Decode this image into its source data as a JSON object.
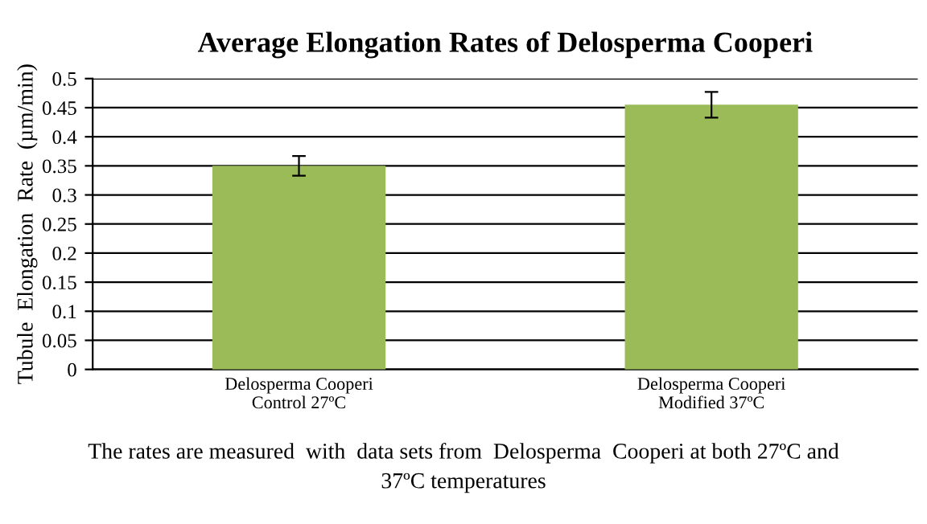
{
  "chart_data": {
    "type": "bar",
    "title": "Average Elongation Rates of Delosperma Cooperi",
    "ylabel": "Tubule  Elongation  Rate  (µm/min)",
    "categories": [
      "Delosperma Cooperi\nControl 27ºC",
      "Delosperma Cooperi\nModified 37ºC"
    ],
    "values": [
      0.35,
      0.455
    ],
    "errors": [
      0.017,
      0.022
    ],
    "color": "#9bbb59",
    "ylim": [
      0,
      0.5
    ],
    "yticks": [
      {
        "value": 0,
        "label": "0"
      },
      0.05,
      0.1,
      0.15,
      0.2,
      0.25,
      0.3,
      0.35,
      0.4,
      0.45,
      0.5
    ],
    "grid": "y",
    "annotations": [
      "The rates are measured  with  data sets from  Delosperma  Cooperi at both 27ºC and\n37ºC temperatures"
    ]
  }
}
